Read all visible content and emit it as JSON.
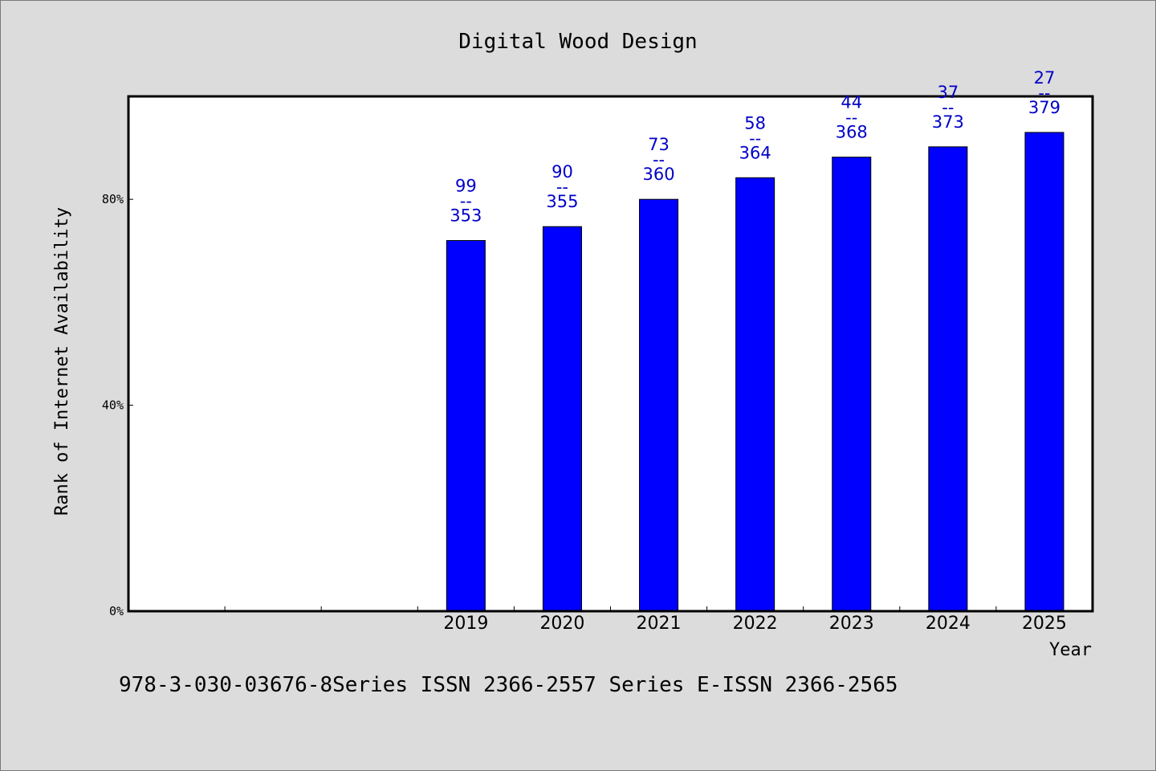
{
  "chart_data": {
    "type": "bar",
    "title": "Digital Wood Design",
    "xlabel": "Year",
    "ylabel": "Rank of Internet Availability",
    "ylim": [
      0,
      100
    ],
    "yticks": [
      {
        "value": 0,
        "label": "0%"
      },
      {
        "value": 40,
        "label": "40%"
      },
      {
        "value": 80,
        "label": "80%"
      }
    ],
    "slots": 10,
    "categories": [
      "2019",
      "2020",
      "2021",
      "2022",
      "2023",
      "2024",
      "2025"
    ],
    "category_start_slot": 3,
    "values": [
      72,
      74.7,
      80,
      84.2,
      88.2,
      90.2,
      93
    ],
    "data_labels": [
      {
        "top": "99",
        "sep": "--",
        "bottom": "353"
      },
      {
        "top": "90",
        "sep": "--",
        "bottom": "355"
      },
      {
        "top": "73",
        "sep": "--",
        "bottom": "360"
      },
      {
        "top": "58",
        "sep": "--",
        "bottom": "364"
      },
      {
        "top": "44",
        "sep": "--",
        "bottom": "368"
      },
      {
        "top": "37",
        "sep": "--",
        "bottom": "373"
      },
      {
        "top": "27",
        "sep": "--",
        "bottom": "379"
      }
    ],
    "bar_color": "#0000ff",
    "label_color": "#0000c8",
    "grid": false,
    "legend": "none"
  },
  "footer": "978-3-030-03676-8Series ISSN 2366-2557 Series E-ISSN 2366-2565",
  "colors": {
    "background": "#dcdcdc",
    "plot_background": "#ffffff"
  }
}
